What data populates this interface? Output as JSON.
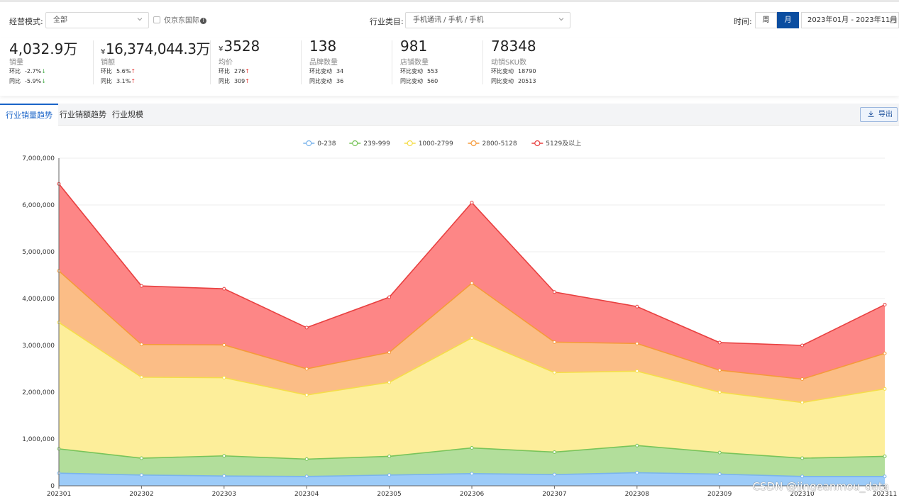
{
  "filters": {
    "mode_label": "经营模式:",
    "mode_value": "全部",
    "jd_intl_label": "仅京东国际",
    "industry_label": "行业类目:",
    "industry_value": "手机通讯 / 手机 / 手机",
    "time_label": "时间:",
    "week_label": "周",
    "month_label": "月",
    "date_range": "2023年01月 - 2023年11月"
  },
  "metrics": [
    {
      "value": "4,032.9万",
      "name": "销量",
      "r1_label": "环比",
      "r1_value": "-2.7%",
      "r1_dir": "↓",
      "r2_label": "同比",
      "r2_value": "-5.9%",
      "r2_dir": "↓"
    },
    {
      "currency": "¥",
      "value": "16,374,044.3万",
      "name": "销额",
      "r1_label": "环比",
      "r1_value": "5.6%",
      "r1_dir": "↑",
      "r2_label": "同比",
      "r2_value": "3.1%",
      "r2_dir": "↑"
    },
    {
      "currency": "¥",
      "value": "3528",
      "name": "均价",
      "r1_label": "环比",
      "r1_value": "276",
      "r1_dir": "↑",
      "r2_label": "同比",
      "r2_value": "309",
      "r2_dir": "↑"
    },
    {
      "value": "138",
      "name": "品牌数量",
      "r1_label": "环比变动",
      "r1_value": "34",
      "r2_label": "同比变动",
      "r2_value": "36"
    },
    {
      "value": "981",
      "name": "店铺数量",
      "r1_label": "环比变动",
      "r1_value": "553",
      "r2_label": "同比变动",
      "r2_value": "560"
    },
    {
      "value": "78348",
      "name": "动销SKU数",
      "r1_label": "环比变动",
      "r1_value": "18790",
      "r2_label": "同比变动",
      "r2_value": "20513"
    }
  ],
  "tabs": [
    "行业销量趋势",
    "行业销额趋势",
    "行业规模"
  ],
  "export_label": "导出",
  "watermark": "CSDN @jingeanmou_data",
  "chart_data": {
    "type": "area",
    "stacked": true,
    "categories": [
      "202301",
      "202302",
      "202303",
      "202304",
      "202305",
      "202306",
      "202307",
      "202308",
      "202309",
      "202310",
      "202311"
    ],
    "ylim": [
      0,
      7000000
    ],
    "yticks": [
      0,
      1000000,
      2000000,
      3000000,
      4000000,
      5000000,
      6000000,
      7000000
    ],
    "ytick_labels": [
      "0",
      "1,000,000",
      "2,000,000",
      "3,000,000",
      "4,000,000",
      "5,000,000",
      "6,000,000",
      "7,000,000"
    ],
    "legend_position": "top-center",
    "series": [
      {
        "name": "0-238",
        "color": "#7ab4ec",
        "fill": "#9ccbf8",
        "values": [
          270000,
          230000,
          210000,
          200000,
          230000,
          260000,
          240000,
          280000,
          250000,
          200000,
          200000
        ]
      },
      {
        "name": "239-999",
        "color": "#78c45a",
        "fill": "#b2de9b",
        "values": [
          520000,
          360000,
          430000,
          370000,
          400000,
          550000,
          480000,
          580000,
          460000,
          390000,
          430000
        ]
      },
      {
        "name": "1000-2799",
        "color": "#f5dd4a",
        "fill": "#fdee9a",
        "values": [
          2700000,
          1730000,
          1670000,
          1370000,
          1580000,
          2350000,
          1700000,
          1590000,
          1290000,
          1190000,
          1440000
        ]
      },
      {
        "name": "2800-5128",
        "color": "#f59a3a",
        "fill": "#fbbd86",
        "values": [
          1100000,
          700000,
          700000,
          560000,
          640000,
          1170000,
          650000,
          590000,
          470000,
          500000,
          760000
        ]
      },
      {
        "name": "5129及以上",
        "color": "#e84040",
        "fill": "#fd8686",
        "values": [
          1860000,
          1250000,
          1200000,
          880000,
          1180000,
          1720000,
          1070000,
          790000,
          590000,
          720000,
          1040000
        ]
      }
    ]
  }
}
